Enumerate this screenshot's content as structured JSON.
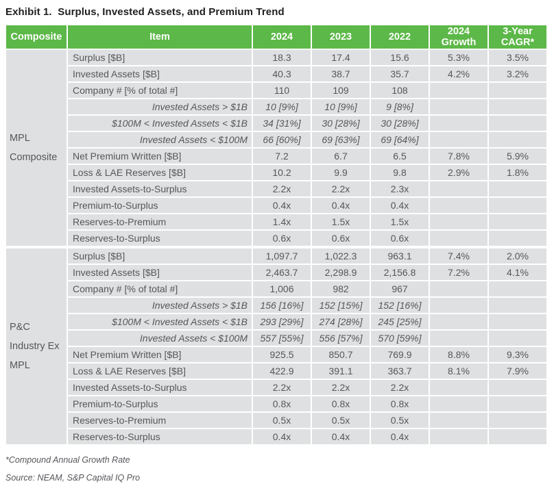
{
  "title": "Exhibit 1.  Surplus, Invested Assets, and Premium Trend",
  "colors": {
    "header_green": "#5cb848",
    "row_gray": "#dfe0e1",
    "text_gray": "#54565a"
  },
  "table": {
    "headers": {
      "composite": "Composite",
      "item": "Item",
      "y2024": "2024",
      "y2023": "2023",
      "y2022": "2022",
      "growth": "2024 Growth",
      "cagr": "3-Year CAGR*"
    },
    "groups": [
      {
        "composite": "MPL Composite",
        "rows": [
          {
            "item": "Surplus [$B]",
            "italic": false,
            "values": [
              "18.3",
              "17.4",
              "15.6"
            ],
            "growth": "5.3%",
            "cagr": "3.5%"
          },
          {
            "item": "Invested Assets [$B]",
            "italic": false,
            "values": [
              "40.3",
              "38.7",
              "35.7"
            ],
            "growth": "4.2%",
            "cagr": "3.2%"
          },
          {
            "item": "Company # [% of total #]",
            "italic": false,
            "values": [
              "110",
              "109",
              "108"
            ],
            "growth": "",
            "cagr": ""
          },
          {
            "item": "Invested Assets > $1B",
            "italic": true,
            "values": [
              "10 [9%]",
              "10 [9%]",
              "9 [8%]"
            ],
            "growth": "",
            "cagr": ""
          },
          {
            "item": "$100M < Invested Assets < $1B",
            "italic": true,
            "values": [
              "34 [31%]",
              "30 [28%]",
              "30 [28%]"
            ],
            "growth": "",
            "cagr": ""
          },
          {
            "item": "Invested Assets < $100M",
            "italic": true,
            "values": [
              "66 [60%]",
              "69 [63%]",
              "69 [64%]"
            ],
            "growth": "",
            "cagr": ""
          },
          {
            "item": "Net Premium Written [$B]",
            "italic": false,
            "values": [
              "7.2",
              "6.7",
              "6.5"
            ],
            "growth": "7.8%",
            "cagr": "5.9%"
          },
          {
            "item": "Loss & LAE Reserves [$B]",
            "italic": false,
            "values": [
              "10.2",
              "9.9",
              "9.8"
            ],
            "growth": "2.9%",
            "cagr": "1.8%"
          },
          {
            "item": "Invested Assets-to-Surplus",
            "italic": false,
            "values": [
              "2.2x",
              "2.2x",
              "2.3x"
            ],
            "growth": "",
            "cagr": ""
          },
          {
            "item": "Premium-to-Surplus",
            "italic": false,
            "values": [
              "0.4x",
              "0.4x",
              "0.4x"
            ],
            "growth": "",
            "cagr": ""
          },
          {
            "item": "Reserves-to-Premium",
            "italic": false,
            "values": [
              "1.4x",
              "1.5x",
              "1.5x"
            ],
            "growth": "",
            "cagr": ""
          },
          {
            "item": "Reserves-to-Surplus",
            "italic": false,
            "values": [
              "0.6x",
              "0.6x",
              "0.6x"
            ],
            "growth": "",
            "cagr": ""
          }
        ]
      },
      {
        "composite": "P&C Industry Ex MPL",
        "rows": [
          {
            "item": "Surplus [$B]",
            "italic": false,
            "values": [
              "1,097.7",
              "1,022.3",
              "963.1"
            ],
            "growth": "7.4%",
            "cagr": "2.0%"
          },
          {
            "item": "Invested Assets [$B]",
            "italic": false,
            "values": [
              "2,463.7",
              "2,298.9",
              "2,156.8"
            ],
            "growth": "7.2%",
            "cagr": "4.1%"
          },
          {
            "item": "Company # [% of total #]",
            "italic": false,
            "values": [
              "1,006",
              "982",
              "967"
            ],
            "growth": "",
            "cagr": ""
          },
          {
            "item": "Invested Assets > $1B",
            "italic": true,
            "values": [
              "156 [16%]",
              "152 [15%]",
              "152 [16%]"
            ],
            "growth": "",
            "cagr": ""
          },
          {
            "item": "$100M < Invested Assets < $1B",
            "italic": true,
            "values": [
              "293 [29%]",
              "274 [28%]",
              "245 [25%]"
            ],
            "growth": "",
            "cagr": ""
          },
          {
            "item": "Invested Assets < $100M",
            "italic": true,
            "values": [
              "557 [55%]",
              "556 [57%]",
              "570 [59%]"
            ],
            "growth": "",
            "cagr": ""
          },
          {
            "item": "Net Premium Written [$B]",
            "italic": false,
            "values": [
              "925.5",
              "850.7",
              "769.9"
            ],
            "growth": "8.8%",
            "cagr": "9.3%"
          },
          {
            "item": "Loss & LAE Reserves [$B]",
            "italic": false,
            "values": [
              "422.9",
              "391.1",
              "363.7"
            ],
            "growth": "8.1%",
            "cagr": "7.9%"
          },
          {
            "item": "Invested Assets-to-Surplus",
            "italic": false,
            "values": [
              "2.2x",
              "2.2x",
              "2.2x"
            ],
            "growth": "",
            "cagr": ""
          },
          {
            "item": "Premium-to-Surplus",
            "italic": false,
            "values": [
              "0.8x",
              "0.8x",
              "0.8x"
            ],
            "growth": "",
            "cagr": ""
          },
          {
            "item": "Reserves-to-Premium",
            "italic": false,
            "values": [
              "0.5x",
              "0.5x",
              "0.5x"
            ],
            "growth": "",
            "cagr": ""
          },
          {
            "item": "Reserves-to-Surplus",
            "italic": false,
            "values": [
              "0.4x",
              "0.4x",
              "0.4x"
            ],
            "growth": "",
            "cagr": ""
          }
        ]
      }
    ]
  },
  "footnotes": {
    "cagr_note": "*Compound Annual Growth Rate",
    "source": "Source: NEAM, S&P Capital IQ Pro"
  }
}
